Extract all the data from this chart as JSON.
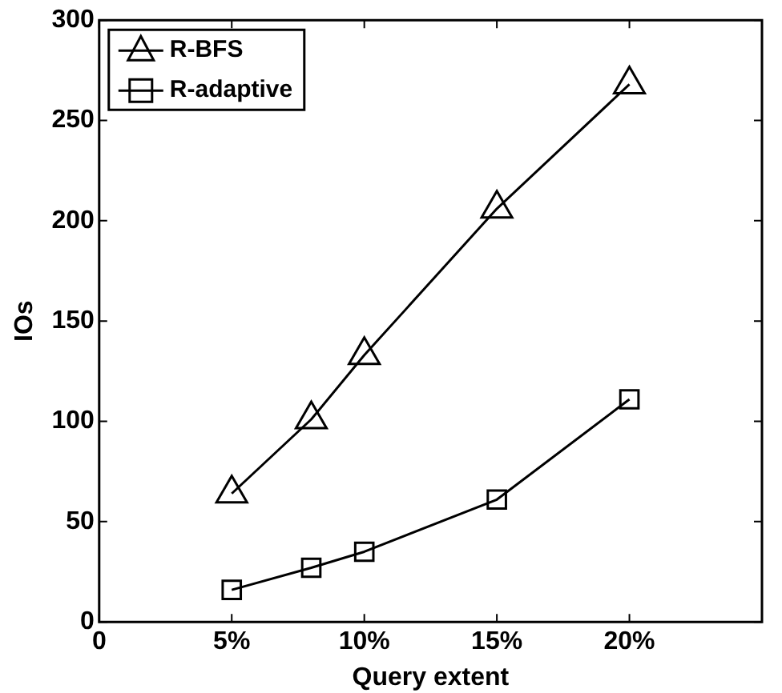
{
  "chart_data": {
    "type": "line",
    "xlabel": "Query extent",
    "ylabel": "IOs",
    "x": [
      5,
      8,
      10,
      15,
      20
    ],
    "series": [
      {
        "name": "R-BFS",
        "color": "#000000",
        "marker": "triangle",
        "values": [
          64,
          101,
          133,
          206,
          268
        ]
      },
      {
        "name": "R-adaptive",
        "color": "#000000",
        "marker": "square",
        "values": [
          16,
          27,
          35,
          61,
          111
        ]
      }
    ],
    "xlim": [
      0,
      25
    ],
    "xticks": [
      0,
      {
        "value": 5,
        "label": "5%"
      },
      {
        "value": 10,
        "label": "10%"
      },
      {
        "value": 15,
        "label": "15%"
      },
      {
        "value": 20,
        "label": "20%"
      }
    ],
    "ylim": [
      0,
      300
    ],
    "yticks": [
      0,
      50,
      100,
      150,
      200,
      250,
      300
    ],
    "grid": false,
    "legend": "top left",
    "line_style": "solid"
  }
}
